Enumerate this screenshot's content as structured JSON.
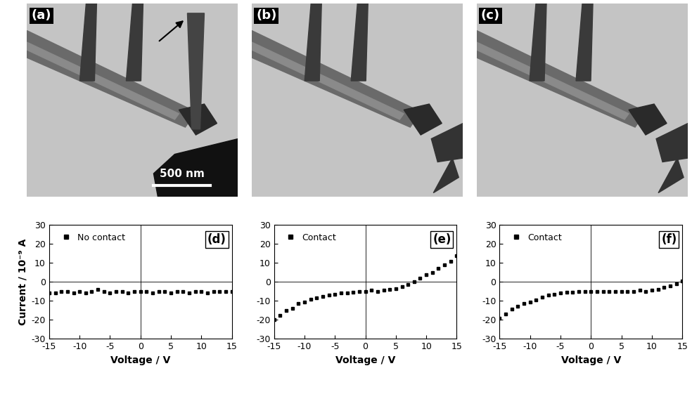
{
  "images": [
    {
      "label": "(a)",
      "scale_bar": "500 nm"
    },
    {
      "label": "(b)"
    },
    {
      "label": "(c)"
    }
  ],
  "chart_data": [
    {
      "type": "scatter",
      "panel_label": "(d)",
      "xlabel": "Voltage / V",
      "ylabel": "Current / 10⁻⁹ A",
      "x": [
        -15,
        -14,
        -13,
        -12,
        -11,
        -10,
        -9,
        -8,
        -7,
        -6,
        -5,
        -4,
        -3,
        -2,
        -1,
        0,
        1,
        2,
        3,
        4,
        5,
        6,
        7,
        8,
        9,
        10,
        11,
        12,
        13,
        14,
        15
      ],
      "series": [
        {
          "name": "No contact",
          "color": "#000000",
          "marker": "square",
          "values": [
            -6,
            -6,
            -5,
            -5,
            -6,
            -5,
            -6,
            -5,
            -4,
            -5,
            -6,
            -5,
            -5,
            -6,
            -5,
            -5,
            -5,
            -6,
            -5,
            -5,
            -6,
            -5,
            -5,
            -6,
            -5,
            -5,
            -6,
            -5,
            -5,
            -5,
            -5
          ]
        }
      ],
      "xlim": [
        -15,
        15
      ],
      "xticks": [
        -15,
        -10,
        -5,
        0,
        5,
        10,
        15
      ],
      "ylim": [
        -30,
        30
      ],
      "yticks": [
        -30,
        -20,
        -10,
        0,
        10,
        20,
        30
      ],
      "legend": "upper left"
    },
    {
      "type": "scatter",
      "panel_label": "(e)",
      "xlabel": "Voltage / V",
      "x": [
        -15,
        -14,
        -13,
        -12,
        -11,
        -10,
        -9,
        -8,
        -7,
        -6,
        -5,
        -4,
        -3,
        -2,
        -1,
        0,
        1,
        2,
        3,
        4,
        5,
        6,
        7,
        8,
        9,
        10,
        11,
        12,
        13,
        14,
        15
      ],
      "series": [
        {
          "name": "Contact",
          "color": "#000000",
          "marker": "square",
          "values": [
            -20,
            -17.5,
            -15,
            -14,
            -11.5,
            -10.5,
            -9,
            -8.5,
            -7.5,
            -7,
            -6.5,
            -6,
            -6,
            -5.5,
            -5,
            -5,
            -4.5,
            -5,
            -4.5,
            -4,
            -3.5,
            -2.5,
            -1.5,
            0,
            2,
            4,
            5,
            7,
            9,
            11,
            14
          ]
        }
      ],
      "xlim": [
        -15,
        15
      ],
      "xticks": [
        -15,
        -10,
        -5,
        0,
        5,
        10,
        15
      ],
      "ylim": [
        -30,
        30
      ],
      "yticks": [
        -30,
        -20,
        -10,
        0,
        10,
        20,
        30
      ],
      "legend": "upper left"
    },
    {
      "type": "scatter",
      "panel_label": "(f)",
      "xlabel": "Voltage / V",
      "x": [
        -15,
        -14,
        -13,
        -12,
        -11,
        -10,
        -9,
        -8,
        -7,
        -6,
        -5,
        -4,
        -3,
        -2,
        -1,
        0,
        1,
        2,
        3,
        4,
        5,
        6,
        7,
        8,
        9,
        10,
        11,
        12,
        13,
        14,
        15
      ],
      "series": [
        {
          "name": "Contact",
          "color": "#000000",
          "marker": "square",
          "values": [
            -19,
            -17,
            -14.5,
            -13,
            -11.5,
            -10.5,
            -9.5,
            -8,
            -7,
            -6.5,
            -6,
            -5.5,
            -5.5,
            -5,
            -5,
            -5,
            -5,
            -5,
            -5,
            -5,
            -5,
            -5,
            -5,
            -4.5,
            -5,
            -4.5,
            -4,
            -3,
            -2,
            -1,
            0.5
          ]
        }
      ],
      "xlim": [
        -15,
        15
      ],
      "xticks": [
        -15,
        -10,
        -5,
        0,
        5,
        10,
        15
      ],
      "ylim": [
        -30,
        30
      ],
      "yticks": [
        -30,
        -20,
        -10,
        0,
        10,
        20,
        30
      ],
      "legend": "upper left"
    }
  ]
}
